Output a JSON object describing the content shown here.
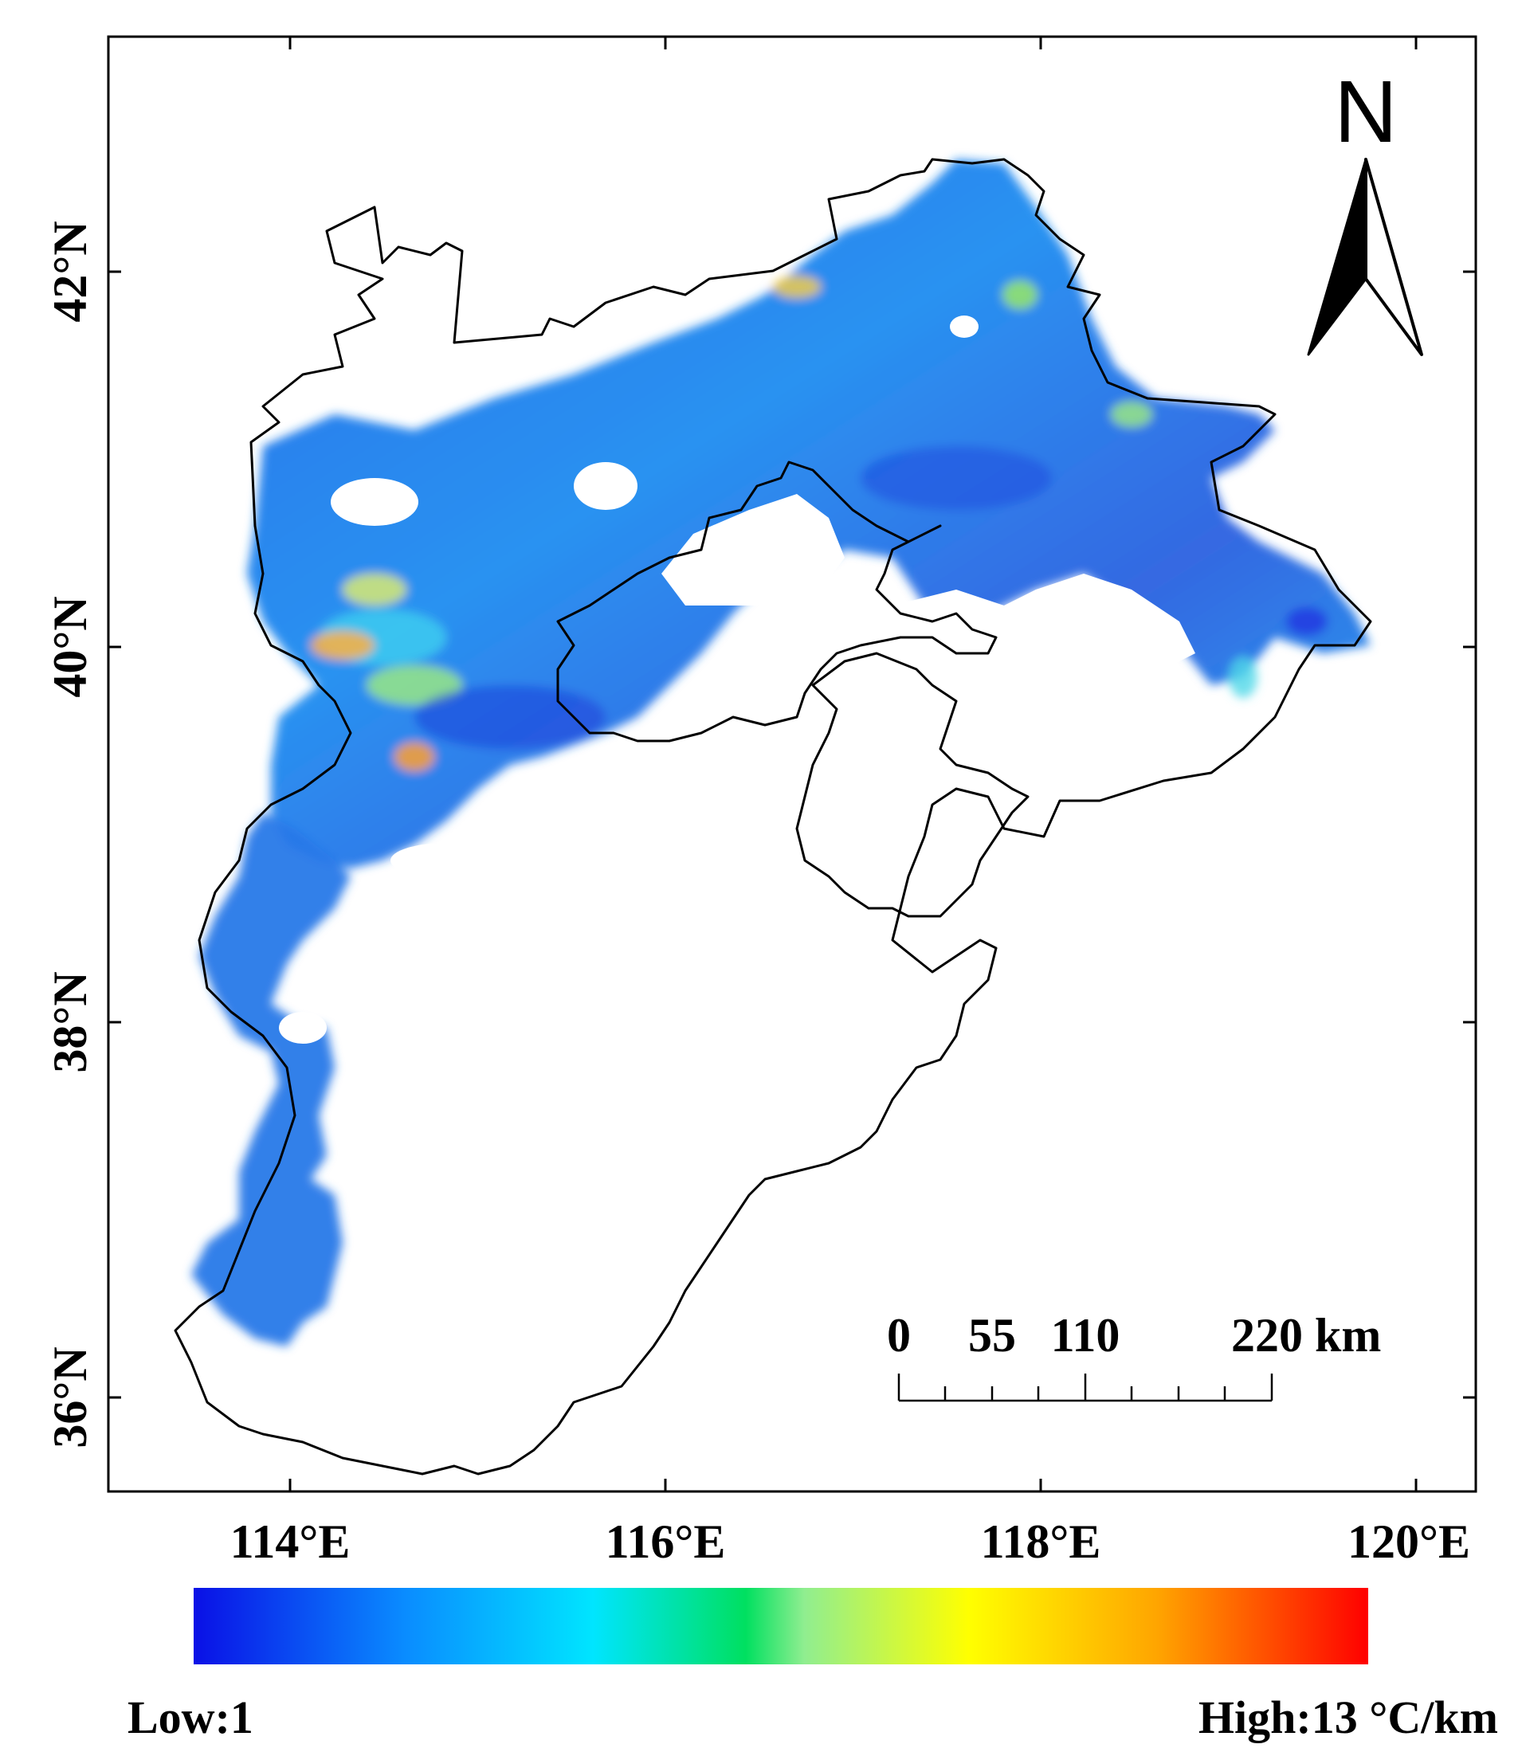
{
  "axes": {
    "x_ticks": [
      "114°E",
      "116°E",
      "118°E",
      "120°E"
    ],
    "y_ticks": [
      "36°N",
      "38°N",
      "40°N",
      "42°N"
    ]
  },
  "north_arrow": {
    "letter": "N"
  },
  "scale_bar": {
    "labels": [
      "0",
      "55",
      "110",
      "220 km"
    ]
  },
  "legend": {
    "low_label": "Low:1",
    "high_label": "High:13 °C/km",
    "gradient": [
      "#0a10e6",
      "#0a8cff",
      "#00e5ff",
      "#00e060",
      "#90ee90",
      "#ffff00",
      "#ffa500",
      "#ff0000"
    ]
  },
  "colors": {
    "frame": "#000000",
    "low_value": "#1e5ae0",
    "mid_value": "#1aa0f0",
    "high_value": "#ffa500"
  }
}
